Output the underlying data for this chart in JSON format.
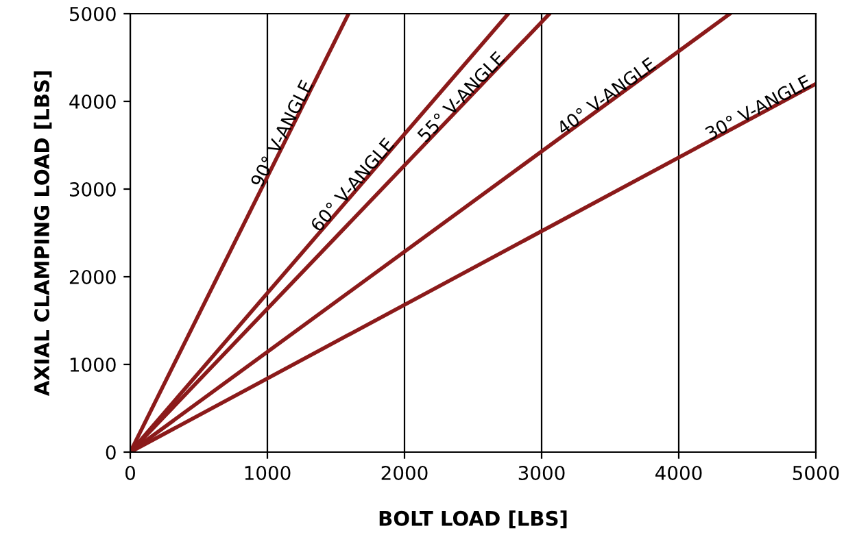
{
  "chart_data": {
    "type": "line",
    "xlabel": "BOLT LOAD [LBS]",
    "ylabel": "AXIAL CLAMPING LOAD [LBS]",
    "xlim": [
      0,
      5000
    ],
    "ylim": [
      0,
      5000
    ],
    "xticks": [
      0,
      1000,
      2000,
      3000,
      4000,
      5000
    ],
    "yticks": [
      0,
      1000,
      2000,
      3000,
      4000,
      5000
    ],
    "grid": "x",
    "legend": false,
    "marker": "none",
    "line_style": "solid",
    "series": [
      {
        "name": "90° V-ANGLE",
        "color": "#8b1a1a",
        "x": [
          0,
          1592
        ],
        "values": [
          0,
          5000
        ]
      },
      {
        "name": "60° V-ANGLE",
        "color": "#8b1a1a",
        "x": [
          0,
          2757
        ],
        "values": [
          0,
          5000
        ]
      },
      {
        "name": "55° V-ANGLE",
        "color": "#8b1a1a",
        "x": [
          0,
          3058
        ],
        "values": [
          0,
          5000
        ]
      },
      {
        "name": "40° V-ANGLE",
        "color": "#8b1a1a",
        "x": [
          0,
          4374
        ],
        "values": [
          0,
          5000
        ]
      },
      {
        "name": "30° V-ANGLE",
        "color": "#8b1a1a",
        "x": [
          0,
          5000
        ],
        "values": [
          0,
          4200
        ]
      }
    ]
  }
}
